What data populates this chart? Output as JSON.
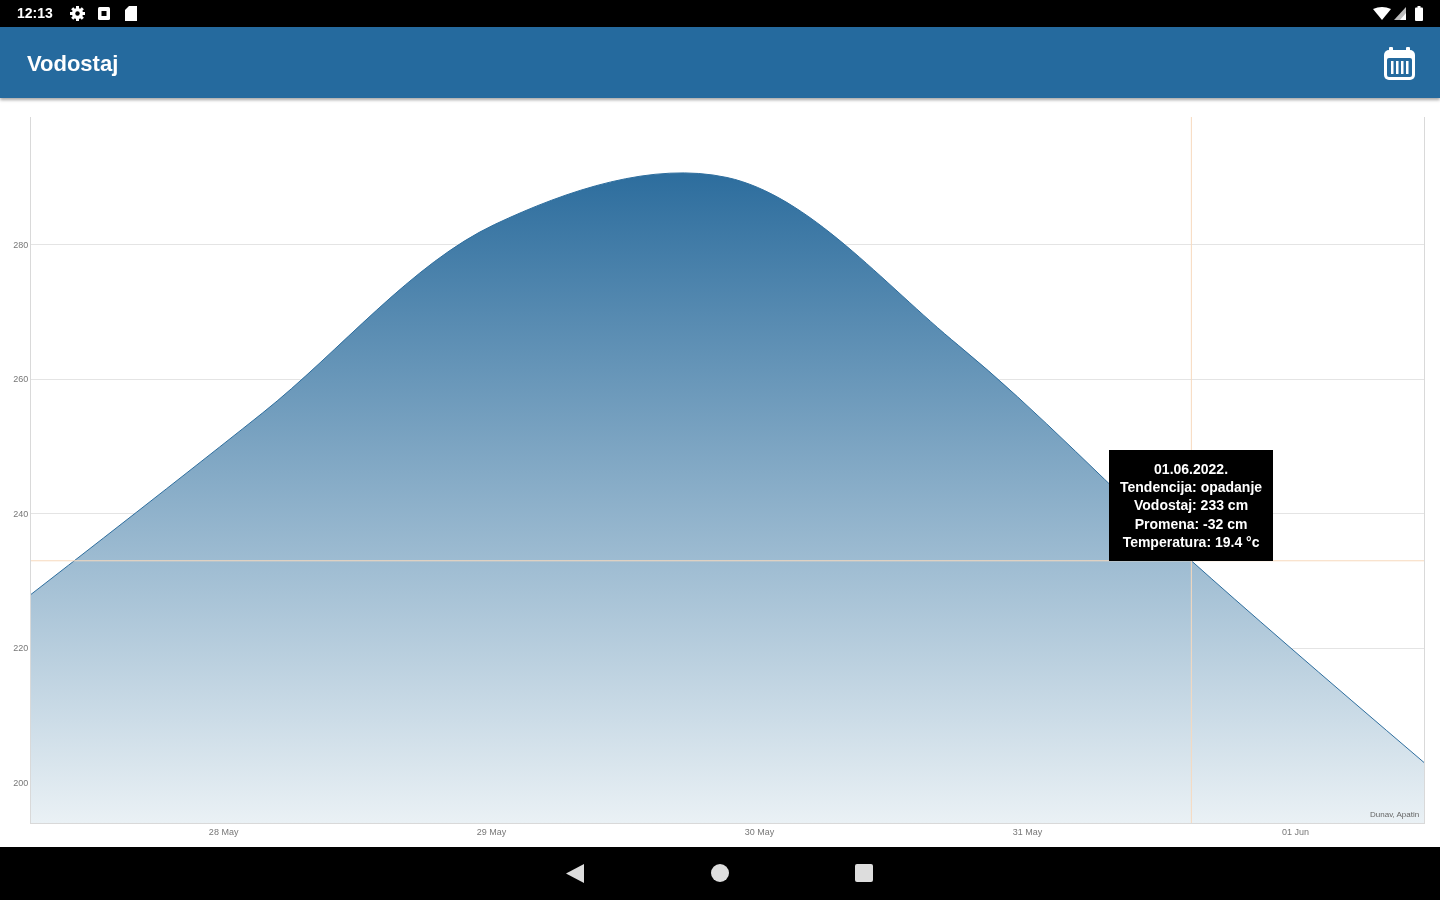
{
  "chart_data": {
    "type": "area",
    "title": "Vodostaj",
    "x": [
      "2022-05-27T06:45",
      "2022-05-28T03:30",
      "2022-05-29T00:15",
      "2022-05-29T21:05",
      "2022-05-30T17:50",
      "2022-05-31T14:40",
      "2022-06-01T11:30"
    ],
    "values": [
      228,
      255,
      283,
      290,
      265,
      233,
      203
    ],
    "color": "#2e6e9e",
    "xlim": [
      "2022-05-27T06:45",
      "2022-06-01T11:30"
    ],
    "xticks": [
      {
        "value": "2022-05-28",
        "label": "28 May"
      },
      {
        "value": "2022-05-29",
        "label": "29 May"
      },
      {
        "value": "2022-05-30",
        "label": "30 May"
      },
      {
        "value": "2022-05-31",
        "label": "31 May"
      },
      {
        "value": "2022-06-01",
        "label": "01 Jun"
      }
    ],
    "ylim": [
      194,
      299
    ],
    "yticks": [
      200,
      220,
      240,
      260,
      280
    ],
    "grid": "y",
    "ref_lines": [
      {
        "axis": "x",
        "value": "2022-05-31T14:40",
        "color": "#f7d9bd"
      },
      {
        "axis": "y",
        "value": 233,
        "color": "#f7d9bd"
      }
    ],
    "annotations": [
      "12:13",
      "Dunav, Apatin",
      {
        "text": "01.06.2022.\nTendencija: opadanje\nVodostaj: 233 cm\nPromena: -32 cm\nTemperatura: 19.4 °c",
        "x": "2022-05-31T14:40",
        "y": 233
      }
    ]
  }
}
